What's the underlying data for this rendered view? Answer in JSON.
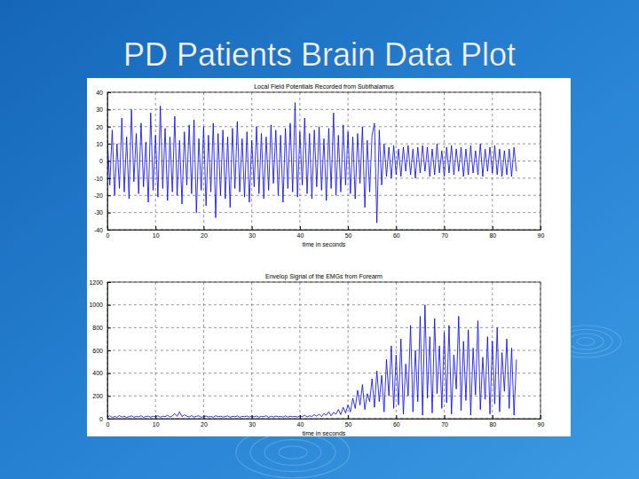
{
  "page": {
    "title": "PD Patients Brain Data Plot"
  },
  "chart_data": [
    {
      "type": "line",
      "title": "Local Field Potentials Recorded from Subthalamus",
      "x_label": "time in seconds",
      "color": "#0000ff",
      "grid": true,
      "xlim": [
        0,
        90
      ],
      "xticks": [
        0,
        10,
        20,
        30,
        40,
        50,
        60,
        70,
        80,
        90
      ],
      "ylim": [
        -40,
        40
      ],
      "yticks": [
        -40,
        -30,
        -20,
        -10,
        0,
        10,
        20,
        30,
        40
      ],
      "x": [
        0,
        0.5,
        1,
        1.5,
        2,
        2.5,
        3,
        3.5,
        4,
        4.5,
        5,
        5.5,
        6,
        6.5,
        7,
        7.5,
        8,
        8.5,
        9,
        9.5,
        10,
        10.5,
        11,
        11.5,
        12,
        12.5,
        13,
        13.5,
        14,
        14.5,
        15,
        15.5,
        16,
        16.5,
        17,
        17.5,
        18,
        18.5,
        19,
        19.5,
        20,
        20.5,
        21,
        21.5,
        22,
        22.5,
        23,
        23.5,
        24,
        24.5,
        25,
        25.5,
        26,
        26.5,
        27,
        27.5,
        28,
        28.5,
        29,
        29.5,
        30,
        30.5,
        31,
        31.5,
        32,
        32.5,
        33,
        33.5,
        34,
        34.5,
        35,
        35.5,
        36,
        36.5,
        37,
        37.5,
        38,
        38.5,
        39,
        39.5,
        40,
        40.5,
        41,
        41.5,
        42,
        42.5,
        43,
        43.5,
        44,
        44.5,
        45,
        45.5,
        46,
        46.5,
        47,
        47.5,
        48,
        48.5,
        49,
        49.5,
        50,
        50.5,
        51,
        51.5,
        52,
        52.5,
        53,
        53.5,
        54,
        54.5,
        55,
        55.5,
        56,
        56.5,
        57,
        57.5,
        58,
        58.5,
        59,
        59.5,
        60,
        60.5,
        61,
        61.5,
        62,
        62.5,
        63,
        63.5,
        64,
        64.5,
        65,
        65.5,
        66,
        66.5,
        67,
        67.5,
        68,
        68.5,
        69,
        69.5,
        70,
        70.5,
        71,
        71.5,
        72,
        72.5,
        73,
        73.5,
        74,
        74.5,
        75,
        75.5,
        76,
        76.5,
        77,
        77.5,
        78,
        78.5,
        79,
        79.5,
        80,
        80.5,
        81,
        81.5,
        82,
        82.5,
        83,
        83.5,
        84,
        84.5,
        85
      ],
      "values": [
        12,
        -14,
        18,
        -20,
        10,
        -16,
        25,
        -18,
        14,
        -22,
        30,
        -12,
        16,
        -19,
        22,
        -15,
        11,
        -24,
        28,
        -17,
        15,
        -21,
        32,
        -16,
        19,
        -23,
        14,
        -18,
        26,
        -20,
        12,
        -25,
        17,
        -14,
        21,
        -19,
        24,
        -30,
        13,
        -17,
        20,
        -26,
        15,
        -18,
        22,
        -33,
        16,
        -20,
        18,
        -22,
        14,
        -27,
        19,
        -16,
        23,
        -18,
        13,
        -21,
        17,
        -24,
        12,
        -15,
        20,
        -19,
        16,
        -22,
        14,
        -17,
        21,
        -13,
        18,
        -20,
        15,
        -24,
        19,
        -16,
        22,
        -18,
        34,
        -21,
        17,
        -14,
        25,
        -19,
        16,
        -22,
        18,
        -15,
        20,
        -17,
        13,
        -23,
        19,
        -16,
        28,
        -20,
        15,
        -18,
        21,
        -14,
        17,
        -19,
        14,
        -22,
        16,
        -13,
        20,
        -27,
        12,
        -18,
        15,
        22,
        -36,
        18,
        -14,
        10,
        -9,
        8,
        -10,
        9,
        -8,
        7,
        -9,
        8,
        -6,
        9,
        -8,
        7,
        -10,
        8,
        -7,
        9,
        -6,
        8,
        -9,
        7,
        -8,
        10,
        -7,
        6,
        -9,
        8,
        -7,
        9,
        -8,
        7,
        -6,
        8,
        -9,
        7,
        -8,
        9,
        -7,
        6,
        -8,
        10,
        -9,
        7,
        -6,
        8,
        -7,
        9,
        -8,
        7,
        -9,
        6,
        -8,
        7,
        -9,
        8,
        -6
      ]
    },
    {
      "type": "line",
      "title": "Envelop Signal of the EMGs from Forearm",
      "x_label": "time in seconds",
      "color": "#0000ff",
      "grid": true,
      "xlim": [
        0,
        90
      ],
      "xticks": [
        0,
        10,
        20,
        30,
        40,
        50,
        60,
        70,
        80,
        90
      ],
      "ylim": [
        0,
        1200
      ],
      "yticks": [
        0,
        200,
        400,
        600,
        800,
        1000,
        1200
      ],
      "x": [
        0,
        0.5,
        1,
        1.5,
        2,
        2.5,
        3,
        3.5,
        4,
        4.5,
        5,
        5.5,
        6,
        6.5,
        7,
        7.5,
        8,
        8.5,
        9,
        9.5,
        10,
        10.5,
        11,
        11.5,
        12,
        12.5,
        13,
        13.5,
        14,
        14.5,
        15,
        15.5,
        16,
        16.5,
        17,
        17.5,
        18,
        18.5,
        19,
        19.5,
        20,
        20.5,
        21,
        21.5,
        22,
        22.5,
        23,
        23.5,
        24,
        24.5,
        25,
        25.5,
        26,
        26.5,
        27,
        27.5,
        28,
        28.5,
        29,
        29.5,
        30,
        30.5,
        31,
        31.5,
        32,
        32.5,
        33,
        33.5,
        34,
        34.5,
        35,
        35.5,
        36,
        36.5,
        37,
        37.5,
        38,
        38.5,
        39,
        39.5,
        40,
        40.5,
        41,
        41.5,
        42,
        42.5,
        43,
        43.5,
        44,
        44.5,
        45,
        45.5,
        46,
        46.5,
        47,
        47.5,
        48,
        48.5,
        49,
        49.5,
        50,
        50.5,
        51,
        51.5,
        52,
        52.5,
        53,
        53.5,
        54,
        54.5,
        55,
        55.5,
        56,
        56.5,
        57,
        57.5,
        58,
        58.5,
        59,
        59.5,
        60,
        60.5,
        61,
        61.5,
        62,
        62.5,
        63,
        63.5,
        64,
        64.5,
        65,
        65.5,
        66,
        66.5,
        67,
        67.5,
        68,
        68.5,
        69,
        69.5,
        70,
        70.5,
        71,
        71.5,
        72,
        72.5,
        73,
        73.5,
        74,
        74.5,
        75,
        75.5,
        76,
        76.5,
        77,
        77.5,
        78,
        78.5,
        79,
        79.5,
        80,
        80.5,
        81,
        81.5,
        82,
        82.5,
        83,
        83.5,
        84,
        84.5,
        85
      ],
      "values": [
        15,
        25,
        10,
        20,
        12,
        28,
        14,
        22,
        11,
        18,
        24,
        13,
        20,
        16,
        26,
        12,
        19,
        23,
        14,
        21,
        17,
        25,
        13,
        22,
        18,
        30,
        15,
        24,
        45,
        20,
        60,
        18,
        35,
        22,
        16,
        27,
        14,
        21,
        25,
        12,
        19,
        23,
        15,
        20,
        12,
        26,
        17,
        22,
        14,
        19,
        24,
        13,
        21,
        16,
        25,
        12,
        20,
        18,
        23,
        14,
        22,
        16,
        24,
        13,
        20,
        18,
        26,
        12,
        21,
        15,
        23,
        17,
        19,
        14,
        25,
        13,
        22,
        16,
        20,
        15,
        24,
        18,
        30,
        15,
        25,
        20,
        35,
        22,
        40,
        18,
        45,
        30,
        60,
        25,
        55,
        40,
        80,
        35,
        100,
        50,
        120,
        60,
        180,
        90,
        250,
        120,
        300,
        80,
        220,
        150,
        350,
        100,
        420,
        150,
        380,
        60,
        520,
        200,
        640,
        90,
        560,
        120,
        700,
        40,
        480,
        200,
        820,
        60,
        600,
        150,
        900,
        30,
        1000,
        180,
        720,
        50,
        880,
        220,
        640,
        90,
        760,
        140,
        820,
        40,
        560,
        260,
        900,
        70,
        680,
        160,
        780,
        30,
        620,
        210,
        860,
        80,
        540,
        170,
        720,
        40,
        680,
        130,
        800,
        60,
        580,
        240,
        700,
        90,
        620,
        30,
        520
      ]
    }
  ]
}
